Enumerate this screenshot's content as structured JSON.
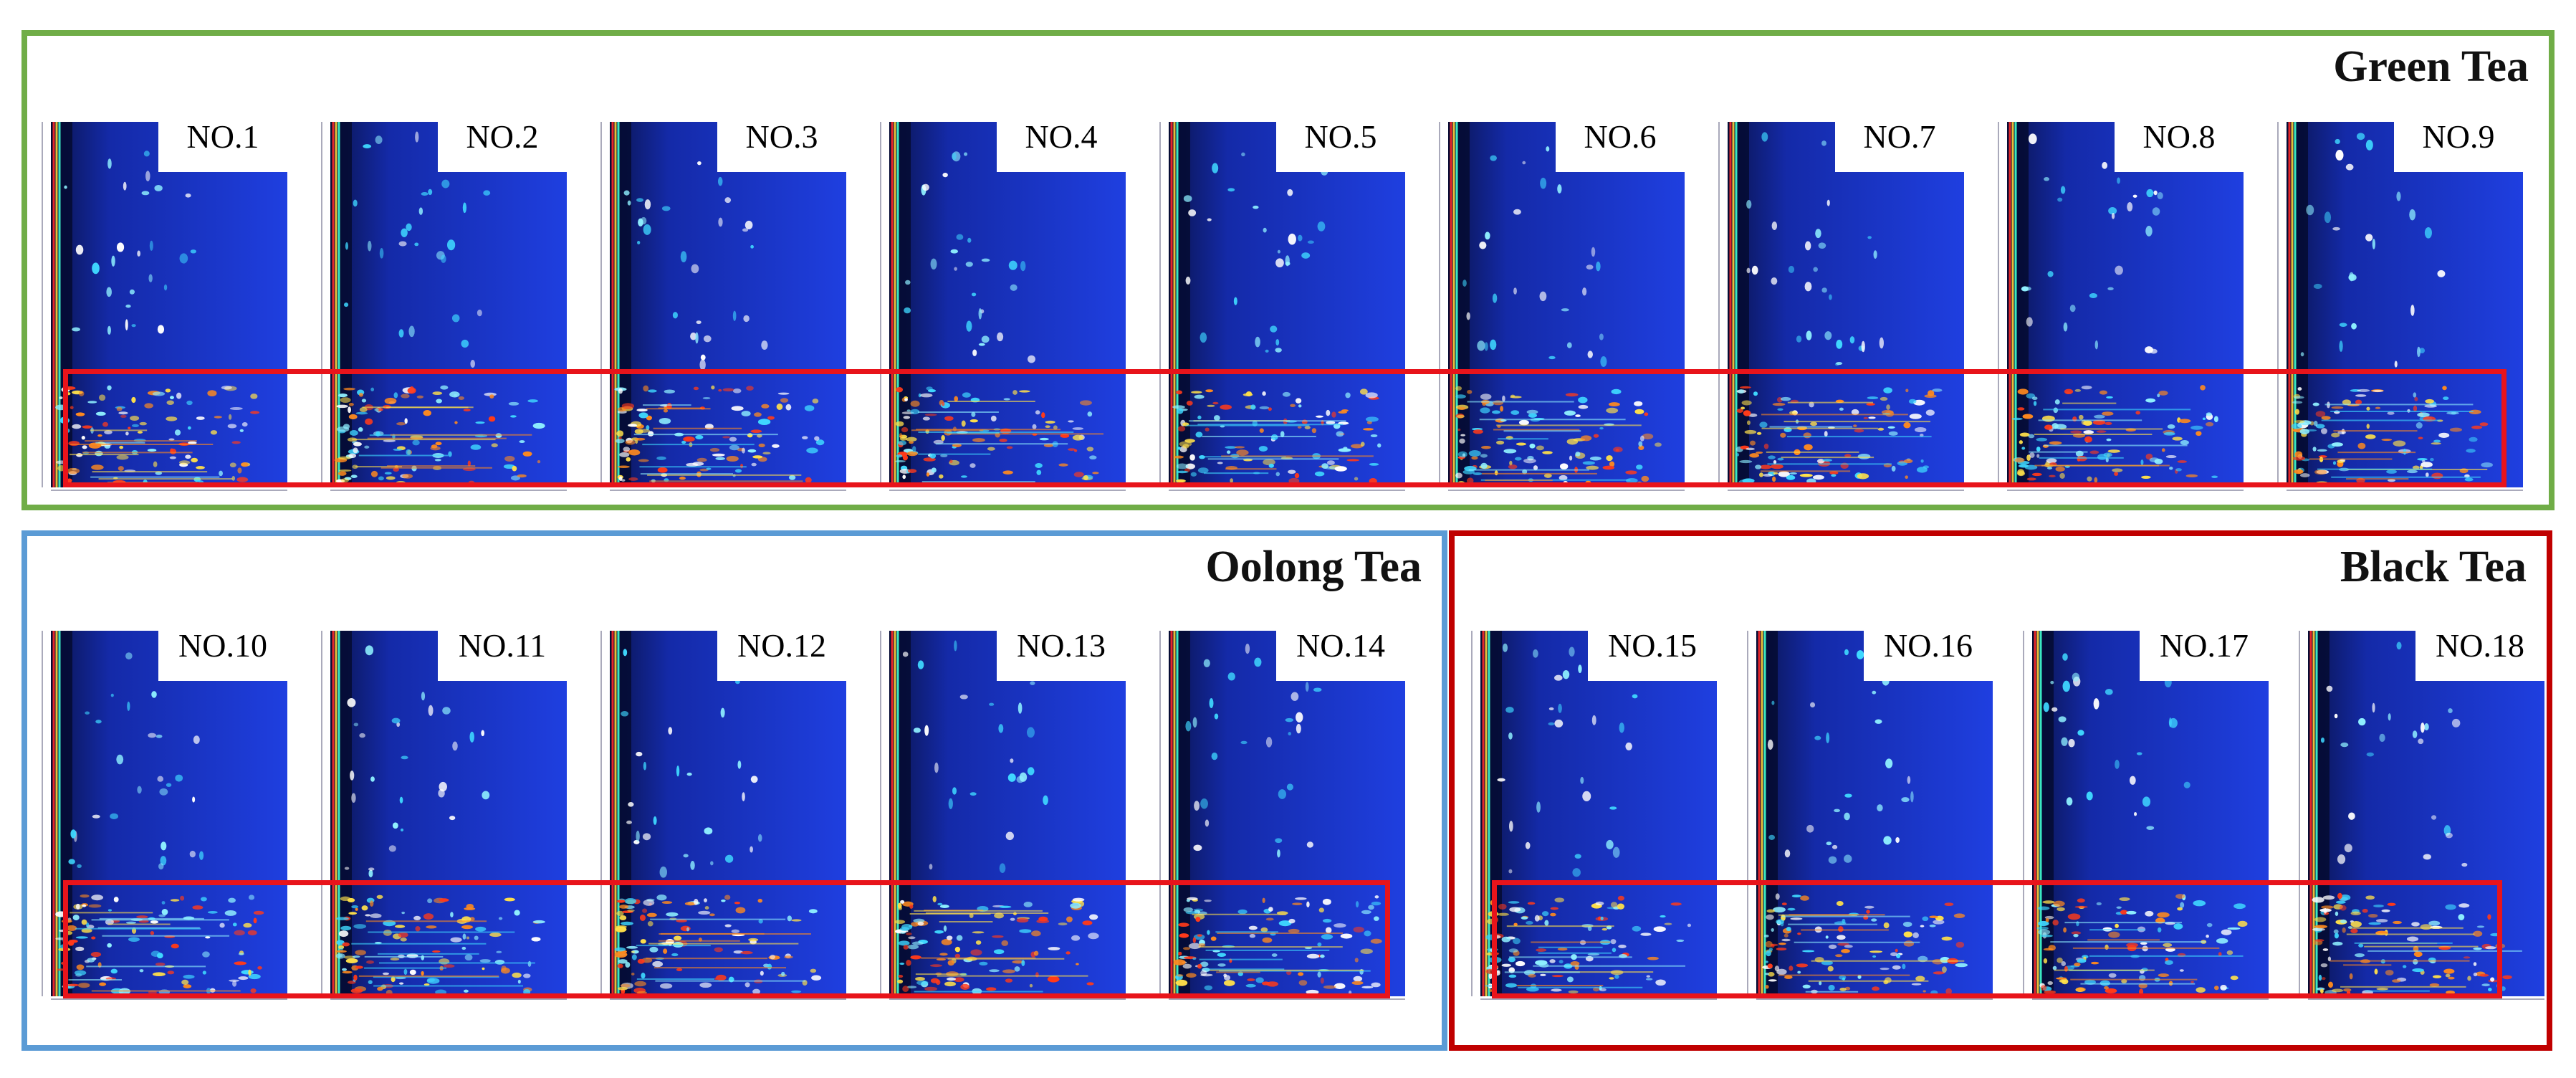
{
  "groups": [
    {
      "name": "Green Tea",
      "color": "#70ad47",
      "samples": [
        "NO.1",
        "NO.2",
        "NO.3",
        "NO.4",
        "NO.5",
        "NO.6",
        "NO.7",
        "NO.8",
        "NO.9"
      ]
    },
    {
      "name": "Oolong Tea",
      "color": "#5b9bd5",
      "samples": [
        "NO.10",
        "NO.11",
        "NO.12",
        "NO.13",
        "NO.14"
      ]
    },
    {
      "name": "Black Tea",
      "color": "#c00000",
      "samples": [
        "NO.15",
        "NO.16",
        "NO.17",
        "NO.18"
      ]
    }
  ],
  "colors": {
    "highlight_box": "#e8141b",
    "plot_background_dark": "#0a1450",
    "plot_background": "#1f3fe0",
    "peak_colors": [
      "#ffffff",
      "#8ff0ff",
      "#3fd8ff",
      "#ffe04a",
      "#ff8a1e",
      "#ff3a1a"
    ]
  }
}
